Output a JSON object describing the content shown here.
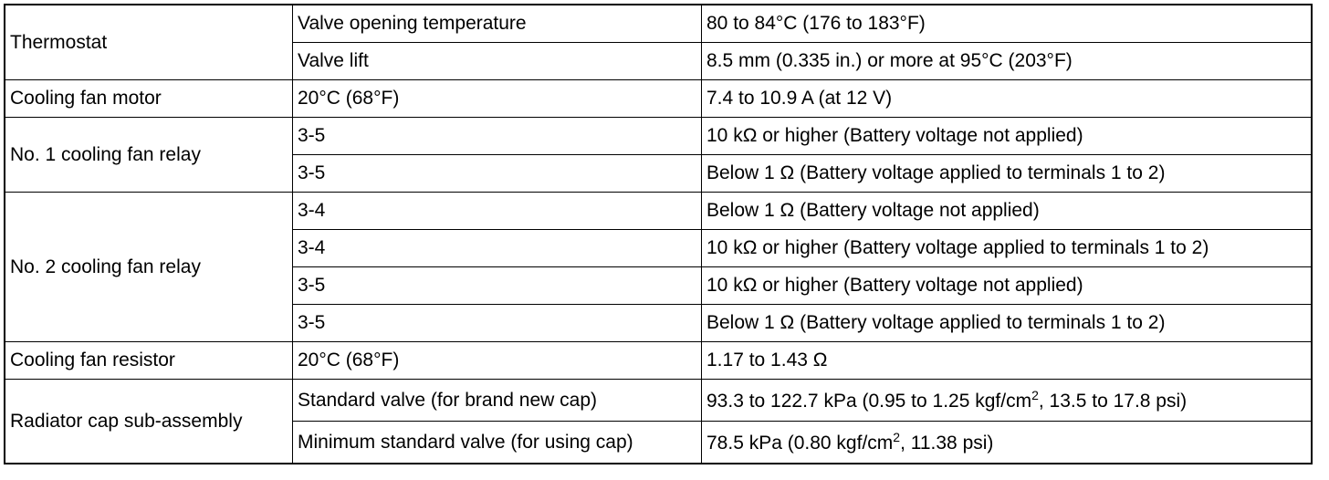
{
  "table": {
    "groups": [
      {
        "component": "Thermostat",
        "rows": [
          {
            "condition": "Valve opening temperature",
            "specification": "80 to 84°C (176 to 183°F)"
          },
          {
            "condition": "Valve lift",
            "specification": "8.5 mm (0.335 in.) or more at 95°C (203°F)"
          }
        ]
      },
      {
        "component": "Cooling fan motor",
        "rows": [
          {
            "condition": "20°C (68°F)",
            "specification": "7.4 to 10.9 A (at 12 V)"
          }
        ]
      },
      {
        "component": "No. 1 cooling fan relay",
        "rows": [
          {
            "condition": "3-5",
            "specification": "10 kΩ or higher (Battery voltage not applied)"
          },
          {
            "condition": "3-5",
            "specification": "Below 1 Ω (Battery voltage applied to terminals 1 to 2)"
          }
        ]
      },
      {
        "component": "No. 2 cooling fan relay",
        "rows": [
          {
            "condition": "3-4",
            "specification": "Below 1 Ω (Battery voltage not applied)"
          },
          {
            "condition": "3-4",
            "specification": "10 kΩ or higher (Battery voltage applied to terminals 1 to 2)"
          },
          {
            "condition": "3-5",
            "specification": "10 kΩ or higher (Battery voltage not applied)"
          },
          {
            "condition": "3-5",
            "specification": "Below 1 Ω (Battery voltage applied to terminals 1 to 2)"
          }
        ]
      },
      {
        "component": "Cooling fan resistor",
        "rows": [
          {
            "condition": "20°C (68°F)",
            "specification": "1.17 to 1.43 Ω"
          }
        ]
      },
      {
        "component": "Radiator cap sub-assembly",
        "rows": [
          {
            "condition": "Standard valve (for brand new cap)",
            "specification": [
              "93.3 to 122.7 kPa (0.95 to 1.25 kgf/cm",
              "2",
              ", 13.5 to 17.8 psi)"
            ]
          },
          {
            "condition": "Minimum standard valve (for using cap)",
            "specification": [
              "78.5 kPa (0.80 kgf/cm",
              "2",
              ", 11.38 psi)"
            ]
          }
        ]
      }
    ]
  }
}
